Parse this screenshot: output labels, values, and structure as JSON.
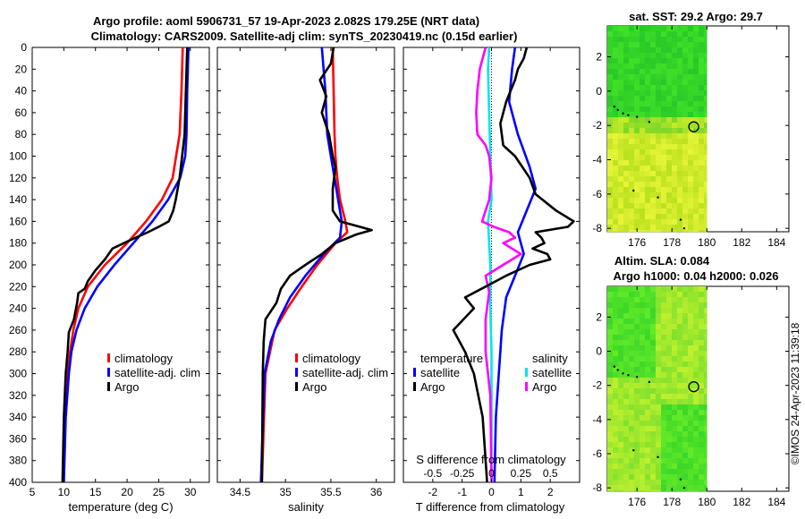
{
  "figure": {
    "title_line1": "Argo profile: aoml 5906731_57 19-Apr-2023 2.082S 179.25E (NRT data)",
    "title_line2": "Climatology: CARS2009. Satellite-adj clim: synTS_20230419.nc (0.15d earlier)",
    "credit": "©IMOS 24-Apr-2023 11:39:18"
  },
  "colors": {
    "climatology": "#ff0000",
    "satellite": "#0000ff",
    "argo": "#000000",
    "sat_s": "#00e5ee",
    "argo_s": "#ff00ff"
  },
  "chart_data": [
    {
      "type": "line",
      "id": "temperature",
      "xlabel": "temperature (deg C)",
      "xlim": [
        5,
        33
      ],
      "xticks": [
        5,
        10,
        15,
        20,
        25,
        30
      ],
      "ylim": [
        0,
        400
      ],
      "yticks": [
        0,
        20,
        40,
        60,
        80,
        100,
        120,
        140,
        160,
        180,
        200,
        220,
        240,
        260,
        280,
        300,
        320,
        340,
        360,
        380,
        400
      ],
      "legend": [
        "climatology",
        "satellite-adj. clim",
        "Argo"
      ],
      "series": [
        {
          "name": "climatology",
          "color": "#ff0000",
          "depth": [
            0,
            40,
            80,
            120,
            140,
            160,
            180,
            200,
            220,
            240,
            260,
            280,
            300,
            340,
            400
          ],
          "values": [
            28.8,
            28.6,
            28.3,
            27.2,
            25.5,
            23.0,
            20.0,
            16.5,
            13.8,
            12.3,
            11.5,
            11.0,
            10.6,
            10.2,
            9.9
          ]
        },
        {
          "name": "satellite-adj. clim",
          "color": "#0000ff",
          "depth": [
            0,
            40,
            80,
            100,
            120,
            140,
            160,
            180,
            200,
            220,
            240,
            260,
            280,
            300,
            340,
            400
          ],
          "values": [
            29.7,
            29.5,
            29.4,
            29.2,
            28.4,
            26.5,
            24.0,
            21.0,
            18.0,
            15.3,
            13.3,
            12.0,
            11.2,
            10.8,
            10.3,
            10.0
          ]
        },
        {
          "name": "Argo",
          "color": "#000000",
          "depth": [
            0,
            40,
            80,
            120,
            140,
            150,
            160,
            165,
            170,
            178,
            185,
            195,
            205,
            215,
            222,
            226,
            235,
            250,
            262,
            280,
            300,
            340,
            400
          ],
          "values": [
            29.5,
            29.3,
            29.1,
            28.3,
            27.7,
            27.3,
            26.6,
            25.0,
            23.3,
            20.2,
            17.7,
            16.5,
            15.0,
            13.8,
            13.3,
            12.3,
            12.1,
            11.6,
            10.8,
            10.6,
            10.3,
            10.0,
            9.8
          ]
        }
      ]
    },
    {
      "type": "line",
      "id": "salinity",
      "xlabel": "salinity",
      "xlim": [
        34.25,
        36.2
      ],
      "xticks": [
        34.5,
        35,
        35.5,
        36
      ],
      "ylim": [
        0,
        400
      ],
      "legend": [
        "climatology",
        "satellite-adj. clim",
        "Argo"
      ],
      "series": [
        {
          "name": "climatology",
          "color": "#ff0000",
          "depth": [
            0,
            40,
            80,
            100,
            120,
            140,
            160,
            170,
            180,
            200,
            220,
            240,
            260,
            300,
            400
          ],
          "values": [
            35.52,
            35.53,
            35.54,
            35.55,
            35.57,
            35.6,
            35.66,
            35.68,
            35.55,
            35.35,
            35.18,
            35.02,
            34.88,
            34.78,
            34.74
          ]
        },
        {
          "name": "satellite-adj. clim",
          "color": "#0000ff",
          "depth": [
            0,
            20,
            40,
            60,
            80,
            100,
            120,
            140,
            160,
            175,
            190,
            210,
            230,
            250,
            270,
            300,
            400
          ],
          "values": [
            35.4,
            35.42,
            35.44,
            35.45,
            35.46,
            35.5,
            35.54,
            35.58,
            35.62,
            35.6,
            35.42,
            35.22,
            35.05,
            34.93,
            34.84,
            34.77,
            34.73
          ]
        },
        {
          "name": "Argo",
          "color": "#000000",
          "depth": [
            0,
            15,
            30,
            45,
            60,
            80,
            100,
            110,
            130,
            150,
            160,
            165,
            168,
            172,
            180,
            190,
            200,
            210,
            222,
            235,
            250,
            270,
            300,
            400
          ],
          "values": [
            35.53,
            35.5,
            35.38,
            35.45,
            35.4,
            35.48,
            35.52,
            35.55,
            35.52,
            35.52,
            35.6,
            35.82,
            35.95,
            35.78,
            35.55,
            35.4,
            35.22,
            35.05,
            34.95,
            34.9,
            34.78,
            34.76,
            34.75,
            34.74
          ]
        }
      ]
    },
    {
      "type": "line",
      "id": "differences",
      "xlabel": "T difference from climatology",
      "top_axis_label": "S difference from climatology",
      "xlim": [
        -3,
        3
      ],
      "xticks": [
        -2,
        -1,
        0,
        1,
        2
      ],
      "top_xlim": [
        -0.75,
        0.75
      ],
      "top_ticks": [
        -0.5,
        -0.25,
        0,
        0.25,
        0.5
      ],
      "ylim": [
        0,
        400
      ],
      "legend_temperature": {
        "title": "temperature",
        "items": [
          "satellite",
          "Argo"
        ]
      },
      "legend_salinity": {
        "title": "salinity",
        "items": [
          "satellite",
          "Argo"
        ]
      },
      "series": [
        {
          "name": "T satellite",
          "color": "#0000ff",
          "depth": [
            0,
            20,
            50,
            80,
            110,
            130,
            150,
            170,
            190,
            210,
            230,
            260,
            300,
            340,
            400
          ],
          "values": [
            0.8,
            0.7,
            0.6,
            0.9,
            1.3,
            1.5,
            1.2,
            0.9,
            1.1,
            0.8,
            0.5,
            0.35,
            0.25,
            0.15,
            0.1
          ]
        },
        {
          "name": "T Argo",
          "color": "#000000",
          "depth": [
            0,
            10,
            20,
            30,
            50,
            70,
            90,
            100,
            120,
            135,
            150,
            160,
            165,
            170,
            175,
            180,
            185,
            190,
            195,
            200,
            210,
            220,
            230,
            240,
            260,
            280,
            300,
            340,
            400
          ],
          "values": [
            1.2,
            1.1,
            0.9,
            0.8,
            0.5,
            0.3,
            0.4,
            0.8,
            1.3,
            1.5,
            2.2,
            2.8,
            2.6,
            1.5,
            1.7,
            1.8,
            1.4,
            1.9,
            2.0,
            1.3,
            0.5,
            -0.2,
            -0.9,
            -0.6,
            -1.3,
            -0.9,
            -0.6,
            -0.3,
            -0.15
          ]
        },
        {
          "name": "S satellite",
          "color": "#00e5ee",
          "depth": [
            0,
            20,
            60,
            100,
            140,
            160,
            180,
            200,
            240,
            280,
            300,
            340,
            400
          ],
          "values": [
            -0.02,
            -0.03,
            -0.02,
            -0.01,
            0.0,
            -0.03,
            -0.02,
            -0.01,
            -0.01,
            0.0,
            0.0,
            0.0,
            0.0
          ]
        },
        {
          "name": "S Argo",
          "color": "#ff00ff",
          "depth": [
            0,
            20,
            40,
            60,
            80,
            90,
            100,
            120,
            140,
            150,
            160,
            165,
            170,
            175,
            180,
            190,
            200,
            210,
            225,
            250,
            280,
            300,
            320,
            400
          ],
          "values": [
            -0.05,
            -0.1,
            -0.12,
            -0.13,
            -0.12,
            -0.05,
            -0.02,
            0.0,
            -0.02,
            -0.05,
            -0.08,
            0.02,
            0.15,
            0.2,
            0.1,
            0.25,
            0.1,
            -0.05,
            -0.02,
            -0.05,
            -0.05,
            -0.03,
            -0.01,
            0.0
          ]
        }
      ]
    },
    {
      "type": "heatmap",
      "id": "sst_map",
      "title": "sat. SST: 29.2 Argo: 29.7",
      "xlim": [
        174.3,
        184.7
      ],
      "xticks": [
        176,
        178,
        180,
        182,
        184
      ],
      "ylim": [
        -8.2,
        3.8
      ],
      "yticks": [
        -8,
        -6,
        -4,
        -2,
        0,
        2
      ],
      "data_xlim": [
        174.3,
        180
      ],
      "argo_position": {
        "lon": 179.25,
        "lat": -2.08
      }
    },
    {
      "type": "heatmap",
      "id": "sla_map",
      "title_line1": "Altim. SLA: 0.084",
      "title_line2": "Argo h1000: 0.04 h2000: 0.026",
      "xlim": [
        174.3,
        184.7
      ],
      "xticks": [
        176,
        178,
        180,
        182,
        184
      ],
      "ylim": [
        -8.2,
        3.8
      ],
      "yticks": [
        -8,
        -6,
        -4,
        -2,
        0,
        2
      ],
      "data_xlim": [
        174.3,
        180
      ],
      "argo_position": {
        "lon": 179.25,
        "lat": -2.08
      }
    }
  ]
}
